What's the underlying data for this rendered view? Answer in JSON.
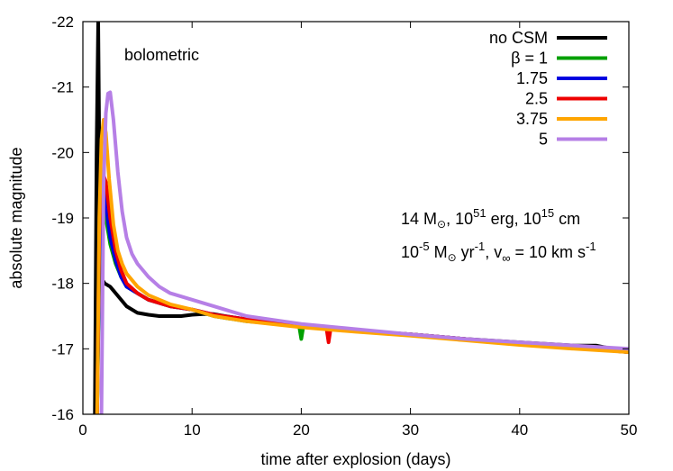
{
  "chart_data": {
    "type": "line",
    "xlabel": "time after explosion (days)",
    "ylabel": "absolute magnitude",
    "xlim": [
      0,
      50
    ],
    "ylim": [
      -16,
      -22
    ],
    "y_inverted": true,
    "grid": false,
    "legend_placement": "top-right",
    "x_ticks": [
      "0",
      "10",
      "20",
      "30",
      "40",
      "50"
    ],
    "y_ticks": [
      "-22",
      "-21",
      "-20",
      "-19",
      "-18",
      "-17",
      "-16"
    ],
    "annotations": {
      "band": "bolometric",
      "params1": {
        "prefix": "14 M",
        "sun": "⊙",
        "mid": ", 10",
        "exp1": "51",
        "mid2": " erg, 10",
        "exp2": "15",
        "suffix": " cm"
      },
      "params2": {
        "p1": "10",
        "exp1": "-5",
        "p2": " M",
        "sun": "⊙",
        "p3": " yr",
        "exp2": "-1",
        "p4": ", v",
        "sub": "∞",
        "p5": " = 10 km s",
        "exp3": "-1"
      }
    },
    "series": [
      {
        "name": "no CSM",
        "color": "#000000",
        "x": [
          1.1,
          1.25,
          1.4,
          1.6,
          1.8,
          2.0,
          2.5,
          3.0,
          4.0,
          5.0,
          6.0,
          7.0,
          8.0,
          9.0,
          10.0,
          11.0,
          12.0,
          13.0,
          15.0,
          17.0,
          20.0,
          25.0,
          30.0,
          35.0,
          40.0,
          45.0,
          47.0,
          50.0
        ],
        "y": [
          -16.0,
          -20.0,
          -22.0,
          -18.1,
          -18.05,
          -18.0,
          -17.95,
          -17.85,
          -17.65,
          -17.55,
          -17.52,
          -17.5,
          -17.5,
          -17.5,
          -17.52,
          -17.53,
          -17.53,
          -17.5,
          -17.45,
          -17.4,
          -17.35,
          -17.28,
          -17.22,
          -17.15,
          -17.1,
          -17.05,
          -17.05,
          -16.95
        ]
      },
      {
        "name": "β = 1",
        "color": "#00a000",
        "x": [
          1.3,
          1.5,
          1.7,
          1.9,
          2.1,
          2.5,
          3.0,
          3.5,
          4.0,
          5.0,
          6.0,
          8.0,
          10.0,
          12.0,
          15.0,
          18.0,
          19.8,
          20.0,
          20.2,
          25.0,
          30.0,
          35.0,
          40.0,
          45.0,
          50.0
        ],
        "y": [
          -16.0,
          -18.2,
          -19.0,
          -19.2,
          -19.0,
          -18.6,
          -18.3,
          -18.1,
          -17.95,
          -17.85,
          -17.75,
          -17.65,
          -17.6,
          -17.5,
          -17.42,
          -17.38,
          -17.35,
          -17.15,
          -17.35,
          -17.28,
          -17.22,
          -17.15,
          -17.08,
          -17.02,
          -16.95
        ]
      },
      {
        "name": "1.75",
        "color": "#0000e0",
        "x": [
          1.3,
          1.5,
          1.7,
          1.9,
          2.1,
          2.5,
          3.0,
          3.5,
          4.0,
          5.0,
          6.0,
          8.0,
          10.0,
          12.0,
          15.0,
          20.0,
          25.0,
          30.0,
          35.0,
          40.0,
          45.0,
          50.0
        ],
        "y": [
          -16.0,
          -18.5,
          -19.2,
          -19.4,
          -19.2,
          -18.7,
          -18.35,
          -18.1,
          -17.95,
          -17.85,
          -17.75,
          -17.65,
          -17.6,
          -17.52,
          -17.45,
          -17.35,
          -17.28,
          -17.22,
          -17.15,
          -17.08,
          -17.02,
          -16.95
        ]
      },
      {
        "name": "2.5",
        "color": "#ee0000",
        "x": [
          1.3,
          1.5,
          1.7,
          1.9,
          2.1,
          2.5,
          3.0,
          3.5,
          4.0,
          5.0,
          6.0,
          8.0,
          10.0,
          12.0,
          15.0,
          20.0,
          22.3,
          22.5,
          22.7,
          25.0,
          30.0,
          35.0,
          40.0,
          45.0,
          50.0
        ],
        "y": [
          -16.0,
          -18.8,
          -19.5,
          -19.65,
          -19.55,
          -19.0,
          -18.5,
          -18.2,
          -18.0,
          -17.85,
          -17.75,
          -17.65,
          -17.6,
          -17.52,
          -17.45,
          -17.35,
          -17.32,
          -17.1,
          -17.32,
          -17.28,
          -17.22,
          -17.15,
          -17.08,
          -17.02,
          -16.95
        ]
      },
      {
        "name": "3.75",
        "color": "#ffa500",
        "x": [
          1.3,
          1.5,
          1.7,
          1.9,
          2.1,
          2.4,
          2.8,
          3.2,
          3.6,
          4.0,
          5.0,
          6.0,
          8.0,
          10.0,
          12.0,
          15.0,
          20.0,
          25.0,
          30.0,
          35.0,
          40.0,
          45.0,
          50.0
        ],
        "y": [
          -16.0,
          -19.0,
          -20.2,
          -20.5,
          -20.3,
          -19.6,
          -18.9,
          -18.5,
          -18.3,
          -18.15,
          -17.95,
          -17.82,
          -17.68,
          -17.6,
          -17.5,
          -17.42,
          -17.33,
          -17.26,
          -17.2,
          -17.13,
          -17.06,
          -17.0,
          -16.95
        ]
      },
      {
        "name": "5",
        "color": "#b67fe6",
        "x": [
          1.7,
          1.9,
          2.1,
          2.3,
          2.5,
          2.8,
          3.2,
          3.6,
          4.0,
          4.5,
          5.0,
          6.0,
          7.0,
          8.0,
          10.0,
          12.0,
          15.0,
          20.0,
          25.0,
          30.0,
          35.0,
          40.0,
          45.0,
          50.0
        ],
        "y": [
          -16.0,
          -19.5,
          -20.6,
          -20.9,
          -20.92,
          -20.5,
          -19.7,
          -19.1,
          -18.7,
          -18.45,
          -18.3,
          -18.1,
          -17.95,
          -17.85,
          -17.75,
          -17.65,
          -17.5,
          -17.38,
          -17.3,
          -17.22,
          -17.15,
          -17.1,
          -17.05,
          -17.0
        ]
      }
    ]
  }
}
